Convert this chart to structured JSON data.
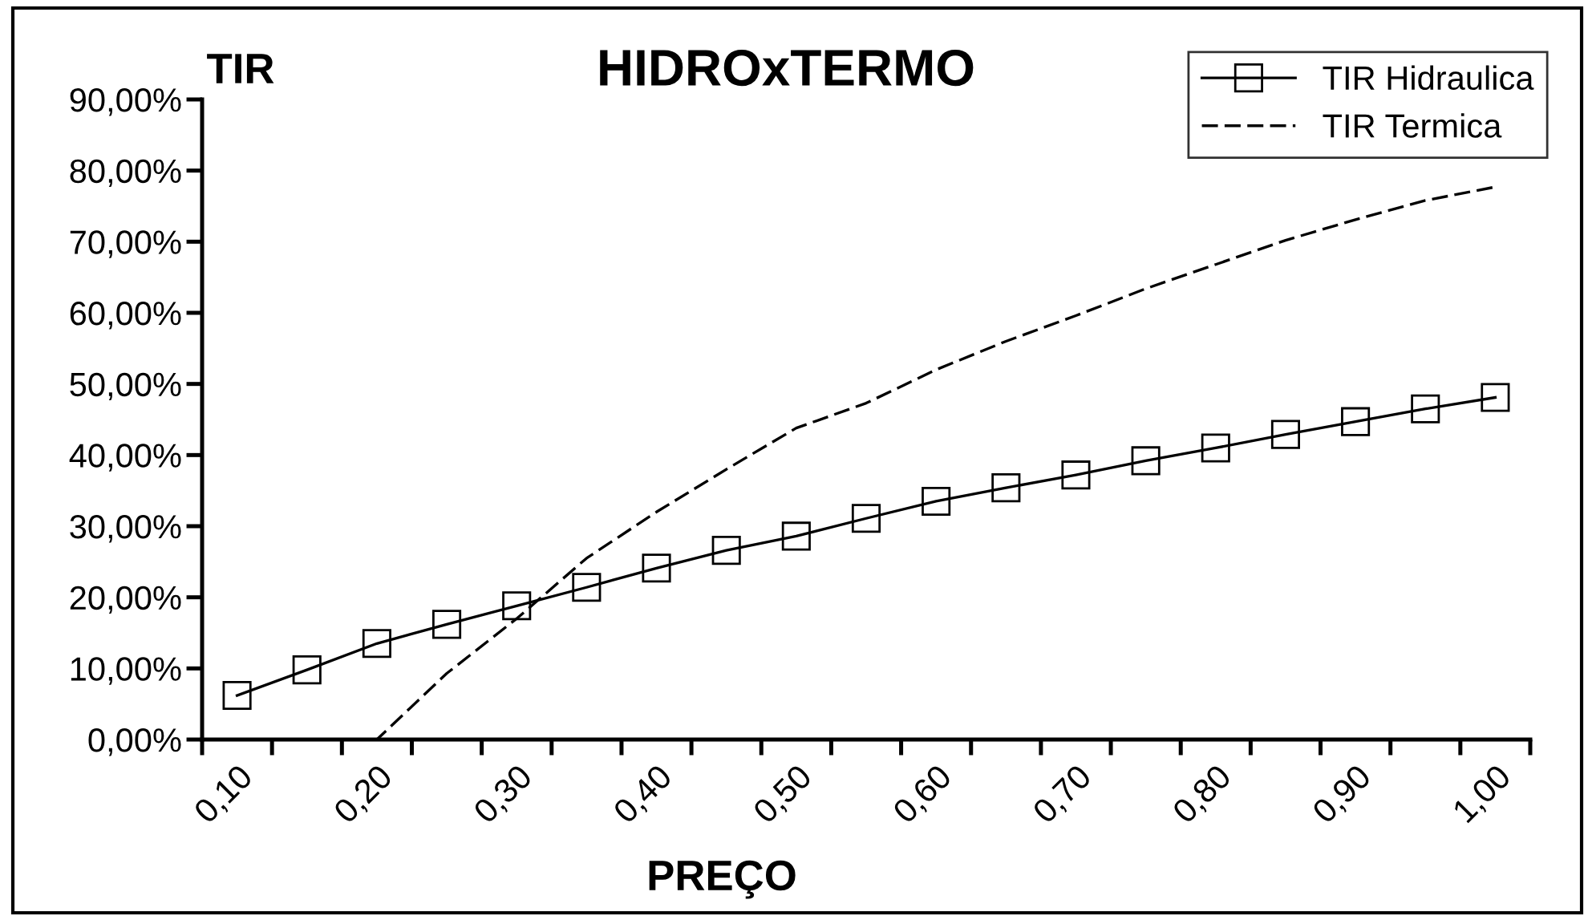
{
  "chart_data": {
    "type": "line",
    "title": "HIDROxTERMO",
    "xlabel": "PREÇO",
    "ylabel": "TIR",
    "categories": [
      "0,10",
      null,
      "0,20",
      null,
      "0,30",
      null,
      "0,40",
      null,
      "0,50",
      null,
      "0,60",
      null,
      "0,70",
      null,
      "0,80",
      null,
      "0,90",
      null,
      "1,00"
    ],
    "series": [
      {
        "name": "TIR Hidraulica",
        "color": "#000000",
        "marker": "square",
        "line_style": "solid",
        "values": [
          6.2,
          9.8,
          13.5,
          16.2,
          18.8,
          21.4,
          24.1,
          26.6,
          28.6,
          31.1,
          33.5,
          35.4,
          37.2,
          39.2,
          41,
          42.9,
          44.7,
          46.5,
          48.1
        ]
      },
      {
        "name": "TIR Termica",
        "color": "#000000",
        "marker": "none",
        "line_style": "dashed",
        "values": [
          0,
          0,
          0,
          9.3,
          17,
          25.5,
          32,
          38,
          43.8,
          47.3,
          52,
          56,
          59.6,
          63.4,
          66.8,
          70.2,
          73.1,
          75.8,
          77.7
        ]
      }
    ],
    "ylim": [
      0,
      90
    ],
    "yticks": [
      {
        "value": 0,
        "label": "0,00%"
      },
      {
        "value": 10,
        "label": "10,00%"
      },
      {
        "value": 20,
        "label": "20,00%"
      },
      {
        "value": 30,
        "label": "30,00%"
      },
      {
        "value": 40,
        "label": "40,00%"
      },
      {
        "value": 50,
        "label": "50,00%"
      },
      {
        "value": 60,
        "label": "60,00%"
      },
      {
        "value": 70,
        "label": "70,00%"
      },
      {
        "value": 80,
        "label": "80,00%"
      },
      {
        "value": 90,
        "label": "90,00%"
      }
    ],
    "grid": false,
    "legend": "top right"
  }
}
